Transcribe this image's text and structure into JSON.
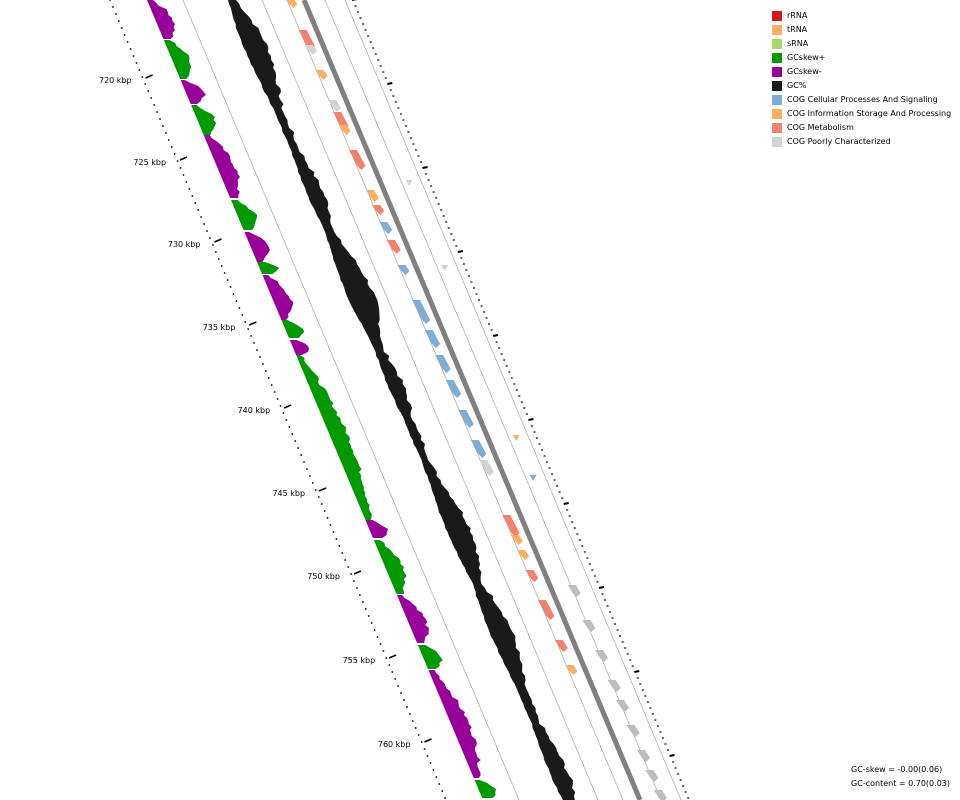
{
  "legend": [
    {
      "label": "rRNA",
      "color": "#d7191c",
      "icon": "square"
    },
    {
      "label": "tRNA",
      "color": "#fdae61",
      "icon": "square"
    },
    {
      "label": "sRNA",
      "color": "#a6d96a",
      "icon": "square"
    },
    {
      "label": "GCskew+",
      "color": "#009900",
      "icon": "square"
    },
    {
      "label": "GCskew-",
      "color": "#990099",
      "icon": "square"
    },
    {
      "label": "GC%",
      "color": "#1a1a1a",
      "icon": "square"
    },
    {
      "label": "COG Cellular Processes And Signaling",
      "color": "#7fadd7",
      "icon": "square"
    },
    {
      "label": "COG Information Storage And Processing",
      "color": "#fdae61",
      "icon": "square"
    },
    {
      "label": "COG Metabolism",
      "color": "#f4806e",
      "icon": "square"
    },
    {
      "label": "COG Poorly Characterized",
      "color": "#d3d3d3",
      "icon": "square"
    }
  ],
  "ticks": [
    "720 kbp",
    "725 kbp",
    "730 kbp",
    "735 kbp",
    "740 kbp",
    "745 kbp",
    "750 kbp",
    "755 kbp",
    "760 kbp"
  ],
  "stats": {
    "gc_skew": "GC-skew = -0.00(0.06)",
    "gc_content": "GC-content = 0.70(0.03)"
  },
  "colors": {
    "backbone": "#808080",
    "track_line": "#999999",
    "unknown_feature": "#bdbdbd"
  },
  "features": {
    "forward": [
      "tRNA",
      "COG Metabolism",
      "COG Poorly Characterized",
      "tRNA",
      "COG Poorly Characterized",
      "COG Metabolism",
      "COG Information Storage And Processing",
      "COG Metabolism",
      "COG Information Storage And Processing",
      "COG Metabolism",
      "COG Cellular Processes And Signaling",
      "COG Metabolism",
      "COG Cellular Processes And Signaling",
      "COG Cellular Processes And Signaling",
      "COG Cellular Processes And Signaling",
      "COG Cellular Processes And Signaling",
      "COG Cellular Processes And Signaling",
      "COG Cellular Processes And Signaling",
      "COG Cellular Processes And Signaling",
      "COG Poorly Characterized",
      "COG Metabolism",
      "tRNA",
      "tRNA",
      "COG Metabolism",
      "COG Metabolism",
      "COG Metabolism",
      "COG Information Storage And Processing"
    ],
    "reverse": [
      "tRNA",
      "COG Poorly Characterized",
      "COG Cellular Processes And Signaling",
      "tRNA"
    ]
  }
}
